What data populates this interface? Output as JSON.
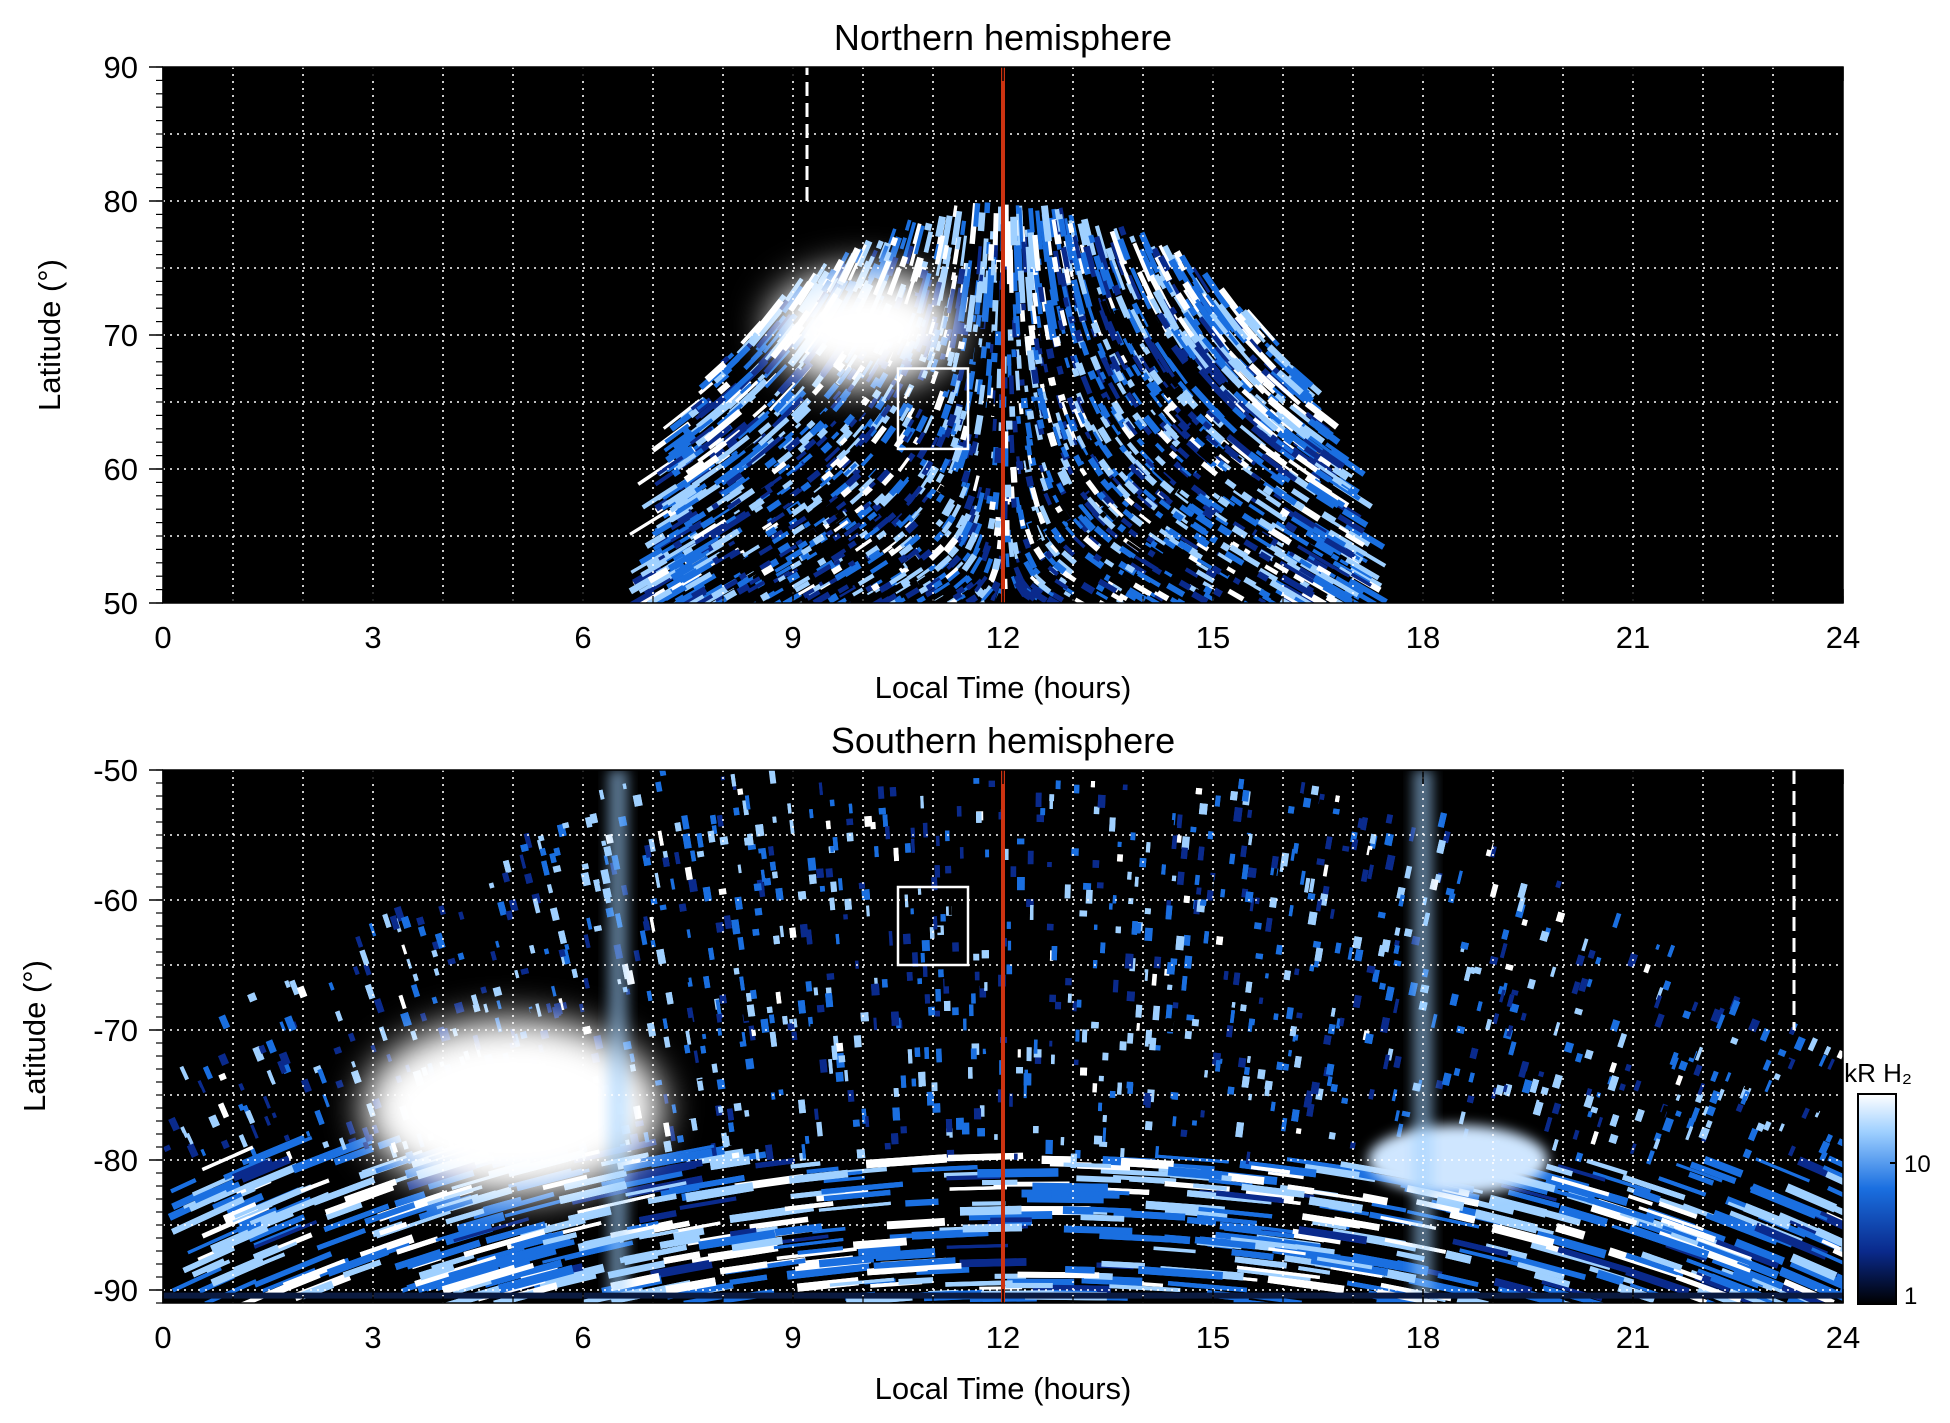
{
  "chart_data": [
    {
      "type": "heatmap",
      "title": "Northern hemisphere",
      "xlabel": "Local Time (hours)",
      "ylabel": "Latitude (°)",
      "xlim": [
        0,
        24
      ],
      "ylim": [
        50,
        90
      ],
      "xticks": [
        0,
        3,
        6,
        9,
        12,
        15,
        18,
        21,
        24
      ],
      "yticks": [
        50,
        60,
        70,
        80,
        90
      ],
      "grid": true,
      "background": "#000000",
      "noon_line": {
        "x": 12,
        "color": "#cc3311"
      },
      "dashed_marker": {
        "x": 9.2,
        "y_range": [
          80,
          90
        ]
      },
      "box": {
        "x": [
          10.5,
          11.5
        ],
        "y": [
          61.5,
          67.5
        ]
      },
      "coverage_region": {
        "x_range": [
          7.1,
          17.2
        ],
        "max_latitude": 80
      },
      "bright_patch": {
        "x_center": 10.0,
        "y_center": 70.5,
        "level": "saturated"
      }
    },
    {
      "type": "heatmap",
      "title": "Southern hemisphere",
      "xlabel": "Local Time (hours)",
      "ylabel": "Latitude (°)",
      "xlim": [
        0,
        24
      ],
      "ylim": [
        -91,
        -50
      ],
      "xticks": [
        0,
        3,
        6,
        9,
        12,
        15,
        18,
        21,
        24
      ],
      "yticks": [
        -50,
        -60,
        -70,
        -80,
        -90
      ],
      "grid": true,
      "background": "#000000",
      "noon_line": {
        "x": 12,
        "color": "#cc3311"
      },
      "dashed_marker": {
        "x": 23.3,
        "y_range": [
          -50,
          -70
        ]
      },
      "box": {
        "x": [
          10.5,
          11.5
        ],
        "y": [
          -59,
          -65
        ]
      },
      "coverage_region": {
        "x_range": [
          0,
          24
        ],
        "min_latitude": -50
      },
      "bright_patch": {
        "x_center": 5.0,
        "y_center": -76,
        "level": "saturated"
      }
    }
  ],
  "colorbar": {
    "label": "kR H₂",
    "scale": "log",
    "range": [
      1,
      30
    ],
    "tick_labels": [
      "10",
      "1"
    ],
    "colors": [
      "#000000",
      "#0a2a8c",
      "#1a6fe0",
      "#9fd0ff",
      "#ffffff"
    ]
  }
}
